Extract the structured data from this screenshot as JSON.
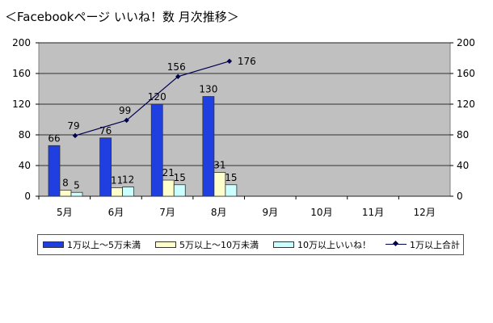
{
  "title": "＜Facebookページ いいね！数 月次推移＞",
  "colors": {
    "plot_bg": "#c0c0c0",
    "series1": "#1f3fe0",
    "series2": "#ffffcc",
    "series3": "#ccffff",
    "line": "#000050"
  },
  "chart_data": {
    "type": "bar",
    "title": "＜Facebookページ いいね！数 月次推移＞",
    "categories": [
      "5月",
      "6月",
      "7月",
      "8月",
      "9月",
      "10月",
      "11月",
      "12月"
    ],
    "ylim": [
      0,
      200
    ],
    "y2lim": [
      0,
      200
    ],
    "yticks": [
      0,
      40,
      80,
      120,
      160,
      200
    ],
    "grid": true,
    "legend_position": "bottom",
    "series": [
      {
        "name": "1万以上～5万未満",
        "type": "bar",
        "color": "#1f3fe0",
        "values": [
          66,
          76,
          120,
          130,
          null,
          null,
          null,
          null
        ]
      },
      {
        "name": "5万以上～10万未満",
        "type": "bar",
        "color": "#ffffcc",
        "values": [
          8,
          11,
          21,
          31,
          null,
          null,
          null,
          null
        ]
      },
      {
        "name": "10万以上いいね！",
        "type": "bar",
        "color": "#ccffff",
        "values": [
          5,
          12,
          15,
          15,
          null,
          null,
          null,
          null
        ]
      },
      {
        "name": "1万以上合計",
        "type": "line",
        "color": "#000050",
        "values": [
          79,
          99,
          156,
          176,
          null,
          null,
          null,
          null
        ]
      }
    ]
  }
}
